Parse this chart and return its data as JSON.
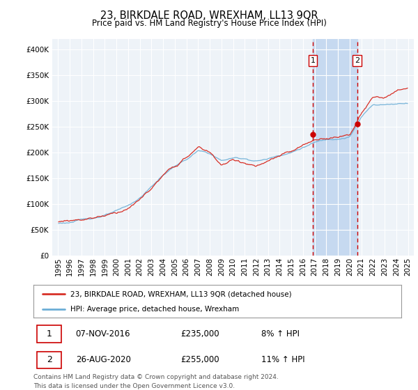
{
  "title": "23, BIRKDALE ROAD, WREXHAM, LL13 9QR",
  "subtitle": "Price paid vs. HM Land Registry's House Price Index (HPI)",
  "hpi_label": "HPI: Average price, detached house, Wrexham",
  "property_label": "23, BIRKDALE ROAD, WREXHAM, LL13 9QR (detached house)",
  "transaction1_date": "07-NOV-2016",
  "transaction1_price": "£235,000",
  "transaction1_hpi": "8% ↑ HPI",
  "transaction2_date": "26-AUG-2020",
  "transaction2_price": "£255,000",
  "transaction2_hpi": "11% ↑ HPI",
  "footer": "Contains HM Land Registry data © Crown copyright and database right 2024.\nThis data is licensed under the Open Government Licence v3.0.",
  "ylim_min": 0,
  "ylim_max": 420000,
  "yticks": [
    0,
    50000,
    100000,
    150000,
    200000,
    250000,
    300000,
    350000,
    400000
  ],
  "background_color": "#ffffff",
  "plot_bg_color": "#eef3f8",
  "grid_color": "#ffffff",
  "hpi_color": "#6baed6",
  "price_color": "#d73027",
  "vline_color": "#cc0000",
  "marker_color": "#cc0000",
  "transaction1_x": 2016.85,
  "transaction2_x": 2020.65,
  "highlight_bg": "#c6d9f0"
}
